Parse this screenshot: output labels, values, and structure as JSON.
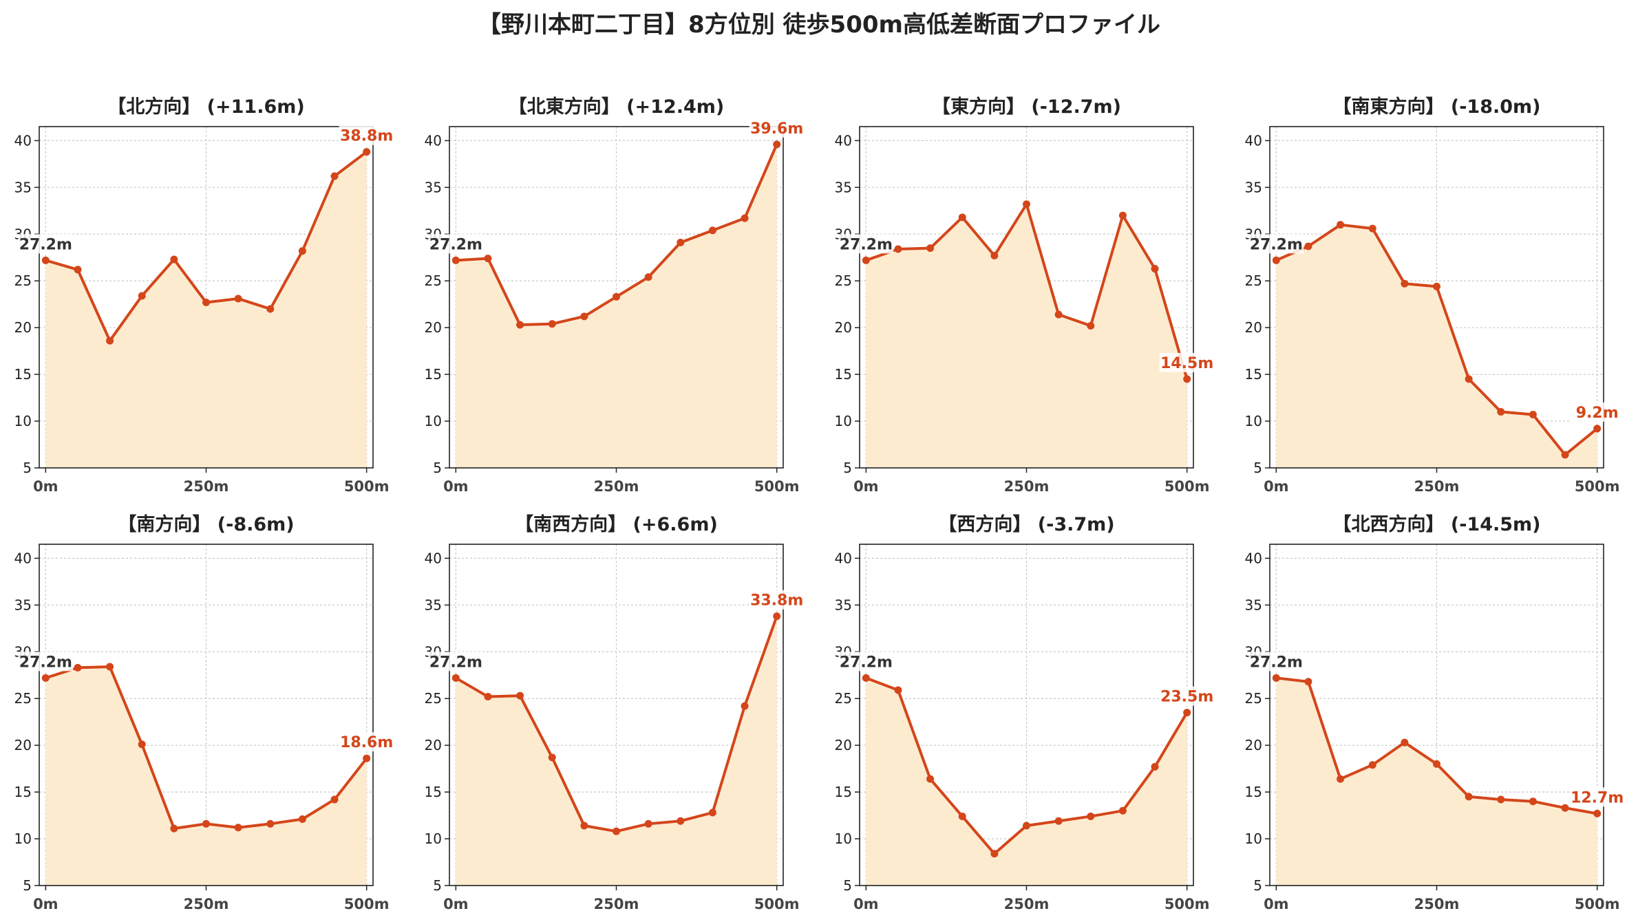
{
  "page": {
    "title": "【野川本町二丁目】8方位別 徒歩500m高低差断面プロファイル"
  },
  "style": {
    "line_color": "#d4461a",
    "fill_color": "#fdebd0",
    "start_label_color": "#333333",
    "end_label_color": "#d4461a",
    "grid": true
  },
  "chart_data": [
    {
      "type": "area",
      "title": "【北方向】 (+11.6m)",
      "xlabel": "",
      "ylabel": "",
      "x": [
        0,
        50,
        100,
        150,
        200,
        250,
        300,
        350,
        400,
        450,
        500
      ],
      "y": [
        27.2,
        26.2,
        18.6,
        23.4,
        27.3,
        22.7,
        23.1,
        22.0,
        28.2,
        36.2,
        38.8
      ],
      "x_tick_values": [
        0,
        250,
        500
      ],
      "x_tick_labels": [
        "0m",
        "250m",
        "500m"
      ],
      "y_ticks": [
        5,
        10,
        15,
        20,
        25,
        30,
        35,
        40
      ],
      "xlim": [
        -10,
        510
      ],
      "ylim": [
        5,
        41.5
      ],
      "start_label": "27.2m",
      "end_label": "38.8m"
    },
    {
      "type": "area",
      "title": "【北東方向】 (+12.4m)",
      "xlabel": "",
      "ylabel": "",
      "x": [
        0,
        50,
        100,
        150,
        200,
        250,
        300,
        350,
        400,
        450,
        500
      ],
      "y": [
        27.2,
        27.4,
        20.3,
        20.4,
        21.2,
        23.3,
        25.4,
        29.1,
        30.4,
        31.7,
        39.6
      ],
      "x_tick_values": [
        0,
        250,
        500
      ],
      "x_tick_labels": [
        "0m",
        "250m",
        "500m"
      ],
      "y_ticks": [
        5,
        10,
        15,
        20,
        25,
        30,
        35,
        40
      ],
      "xlim": [
        -10,
        510
      ],
      "ylim": [
        5,
        41.5
      ],
      "start_label": "27.2m",
      "end_label": "39.6m"
    },
    {
      "type": "area",
      "title": "【東方向】 (-12.7m)",
      "xlabel": "",
      "ylabel": "",
      "x": [
        0,
        50,
        100,
        150,
        200,
        250,
        300,
        350,
        400,
        450,
        500
      ],
      "y": [
        27.2,
        28.4,
        28.5,
        31.8,
        27.7,
        33.2,
        21.4,
        20.2,
        32.0,
        26.3,
        14.5
      ],
      "x_tick_values": [
        0,
        250,
        500
      ],
      "x_tick_labels": [
        "0m",
        "250m",
        "500m"
      ],
      "y_ticks": [
        5,
        10,
        15,
        20,
        25,
        30,
        35,
        40
      ],
      "xlim": [
        -10,
        510
      ],
      "ylim": [
        5,
        41.5
      ],
      "start_label": "27.2m",
      "end_label": "14.5m"
    },
    {
      "type": "area",
      "title": "【南東方向】 (-18.0m)",
      "xlabel": "",
      "ylabel": "",
      "x": [
        0,
        50,
        100,
        150,
        200,
        250,
        300,
        350,
        400,
        450,
        500
      ],
      "y": [
        27.2,
        28.7,
        31.0,
        30.6,
        24.7,
        24.4,
        14.5,
        11.0,
        10.7,
        6.4,
        9.2
      ],
      "x_tick_values": [
        0,
        250,
        500
      ],
      "x_tick_labels": [
        "0m",
        "250m",
        "500m"
      ],
      "y_ticks": [
        5,
        10,
        15,
        20,
        25,
        30,
        35,
        40
      ],
      "xlim": [
        -10,
        510
      ],
      "ylim": [
        5,
        41.5
      ],
      "start_label": "27.2m",
      "end_label": "9.2m"
    },
    {
      "type": "area",
      "title": "【南方向】 (-8.6m)",
      "xlabel": "",
      "ylabel": "",
      "x": [
        0,
        50,
        100,
        150,
        200,
        250,
        300,
        350,
        400,
        450,
        500
      ],
      "y": [
        27.2,
        28.3,
        28.4,
        20.1,
        11.1,
        11.6,
        11.2,
        11.6,
        12.1,
        14.2,
        18.6
      ],
      "x_tick_values": [
        0,
        250,
        500
      ],
      "x_tick_labels": [
        "0m",
        "250m",
        "500m"
      ],
      "y_ticks": [
        5,
        10,
        15,
        20,
        25,
        30,
        35,
        40
      ],
      "xlim": [
        -10,
        510
      ],
      "ylim": [
        5,
        41.5
      ],
      "start_label": "27.2m",
      "end_label": "18.6m"
    },
    {
      "type": "area",
      "title": "【南西方向】 (+6.6m)",
      "xlabel": "",
      "ylabel": "",
      "x": [
        0,
        50,
        100,
        150,
        200,
        250,
        300,
        350,
        400,
        450,
        500
      ],
      "y": [
        27.2,
        25.2,
        25.3,
        18.7,
        11.4,
        10.8,
        11.6,
        11.9,
        12.8,
        24.2,
        33.8
      ],
      "x_tick_values": [
        0,
        250,
        500
      ],
      "x_tick_labels": [
        "0m",
        "250m",
        "500m"
      ],
      "y_ticks": [
        5,
        10,
        15,
        20,
        25,
        30,
        35,
        40
      ],
      "xlim": [
        -10,
        510
      ],
      "ylim": [
        5,
        41.5
      ],
      "start_label": "27.2m",
      "end_label": "33.8m"
    },
    {
      "type": "area",
      "title": "【西方向】 (-3.7m)",
      "xlabel": "",
      "ylabel": "",
      "x": [
        0,
        50,
        100,
        150,
        200,
        250,
        300,
        350,
        400,
        450,
        500
      ],
      "y": [
        27.2,
        25.9,
        16.4,
        12.4,
        8.4,
        11.4,
        11.9,
        12.4,
        13.0,
        17.7,
        23.5
      ],
      "x_tick_values": [
        0,
        250,
        500
      ],
      "x_tick_labels": [
        "0m",
        "250m",
        "500m"
      ],
      "y_ticks": [
        5,
        10,
        15,
        20,
        25,
        30,
        35,
        40
      ],
      "xlim": [
        -10,
        510
      ],
      "ylim": [
        5,
        41.5
      ],
      "start_label": "27.2m",
      "end_label": "23.5m"
    },
    {
      "type": "area",
      "title": "【北西方向】 (-14.5m)",
      "xlabel": "",
      "ylabel": "",
      "x": [
        0,
        50,
        100,
        150,
        200,
        250,
        300,
        350,
        400,
        450,
        500
      ],
      "y": [
        27.2,
        26.8,
        16.4,
        17.9,
        20.3,
        18.0,
        14.5,
        14.2,
        14.0,
        13.3,
        12.7
      ],
      "x_tick_values": [
        0,
        250,
        500
      ],
      "x_tick_labels": [
        "0m",
        "250m",
        "500m"
      ],
      "y_ticks": [
        5,
        10,
        15,
        20,
        25,
        30,
        35,
        40
      ],
      "xlim": [
        -10,
        510
      ],
      "ylim": [
        5,
        41.5
      ],
      "start_label": "27.2m",
      "end_label": "12.7m"
    }
  ]
}
